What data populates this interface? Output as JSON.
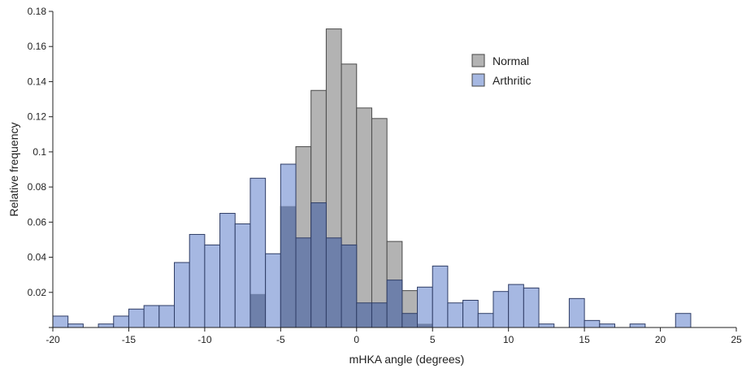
{
  "chart_data": {
    "type": "bar",
    "title": "",
    "xlabel": "mHKA angle (degrees)",
    "ylabel": "Relative frequency",
    "xlim": [
      -20,
      25
    ],
    "ylim": [
      0,
      0.18
    ],
    "bin_width": 1,
    "x_ticks": [
      -20,
      -15,
      -10,
      -5,
      0,
      5,
      10,
      15,
      20,
      25
    ],
    "x_tick_labels": [
      "-20",
      "-15",
      "-10",
      "-5",
      "0",
      "5",
      "10",
      "15",
      "20",
      "25"
    ],
    "y_ticks": [
      0,
      0.02,
      0.04,
      0.06,
      0.08,
      0.1,
      0.12,
      0.14,
      0.16,
      0.18
    ],
    "y_tick_labels": [
      "",
      "0.02",
      "0.04",
      "0.06",
      "0.08",
      "0.1",
      "0.12",
      "0.14",
      "0.16",
      "0.18"
    ],
    "legend_position": "top-right",
    "overlap_color": "#6e80aa",
    "series": [
      {
        "name": "Normal",
        "color": "#b3b3b3",
        "bins": [
          {
            "x0": -7,
            "x1": -6,
            "value": 0.019
          },
          {
            "x0": -6,
            "x1": -5,
            "value": 0.0
          },
          {
            "x0": -5,
            "x1": -4,
            "value": 0.069
          },
          {
            "x0": -4,
            "x1": -3,
            "value": 0.103
          },
          {
            "x0": -3,
            "x1": -2,
            "value": 0.135
          },
          {
            "x0": -2,
            "x1": -1,
            "value": 0.17
          },
          {
            "x0": -1,
            "x1": 0,
            "value": 0.15
          },
          {
            "x0": 0,
            "x1": 1,
            "value": 0.125
          },
          {
            "x0": 1,
            "x1": 2,
            "value": 0.119
          },
          {
            "x0": 2,
            "x1": 3,
            "value": 0.049
          },
          {
            "x0": 3,
            "x1": 4,
            "value": 0.021
          },
          {
            "x0": 4,
            "x1": 5,
            "value": 0.002
          }
        ]
      },
      {
        "name": "Arthritic",
        "color": "#a6b8e2",
        "bins": [
          {
            "x0": -20,
            "x1": -19,
            "value": 0.0065
          },
          {
            "x0": -19,
            "x1": -18,
            "value": 0.002
          },
          {
            "x0": -17,
            "x1": -16,
            "value": 0.002
          },
          {
            "x0": -16,
            "x1": -15,
            "value": 0.0065
          },
          {
            "x0": -15,
            "x1": -14,
            "value": 0.0105
          },
          {
            "x0": -14,
            "x1": -13,
            "value": 0.0125
          },
          {
            "x0": -13,
            "x1": -12,
            "value": 0.0125
          },
          {
            "x0": -12,
            "x1": -11,
            "value": 0.037
          },
          {
            "x0": -11,
            "x1": -10,
            "value": 0.053
          },
          {
            "x0": -10,
            "x1": -9,
            "value": 0.047
          },
          {
            "x0": -9,
            "x1": -8,
            "value": 0.065
          },
          {
            "x0": -8,
            "x1": -7,
            "value": 0.059
          },
          {
            "x0": -7,
            "x1": -6,
            "value": 0.085
          },
          {
            "x0": -6,
            "x1": -5,
            "value": 0.042
          },
          {
            "x0": -5,
            "x1": -4,
            "value": 0.093
          },
          {
            "x0": -4,
            "x1": -3,
            "value": 0.051
          },
          {
            "x0": -3,
            "x1": -2,
            "value": 0.071
          },
          {
            "x0": -2,
            "x1": -1,
            "value": 0.051
          },
          {
            "x0": -1,
            "x1": 0,
            "value": 0.047
          },
          {
            "x0": 0,
            "x1": 1,
            "value": 0.014
          },
          {
            "x0": 1,
            "x1": 2,
            "value": 0.014
          },
          {
            "x0": 2,
            "x1": 3,
            "value": 0.027
          },
          {
            "x0": 3,
            "x1": 4,
            "value": 0.008
          },
          {
            "x0": 4,
            "x1": 5,
            "value": 0.023
          },
          {
            "x0": 5,
            "x1": 6,
            "value": 0.035
          },
          {
            "x0": 6,
            "x1": 7,
            "value": 0.014
          },
          {
            "x0": 7,
            "x1": 8,
            "value": 0.0155
          },
          {
            "x0": 8,
            "x1": 9,
            "value": 0.008
          },
          {
            "x0": 9,
            "x1": 10,
            "value": 0.0205
          },
          {
            "x0": 10,
            "x1": 11,
            "value": 0.0245
          },
          {
            "x0": 11,
            "x1": 12,
            "value": 0.0225
          },
          {
            "x0": 12,
            "x1": 13,
            "value": 0.002
          },
          {
            "x0": 14,
            "x1": 15,
            "value": 0.0165
          },
          {
            "x0": 15,
            "x1": 16,
            "value": 0.004
          },
          {
            "x0": 16,
            "x1": 17,
            "value": 0.002
          },
          {
            "x0": 18,
            "x1": 19,
            "value": 0.002
          },
          {
            "x0": 21,
            "x1": 22,
            "value": 0.008
          }
        ]
      }
    ]
  }
}
